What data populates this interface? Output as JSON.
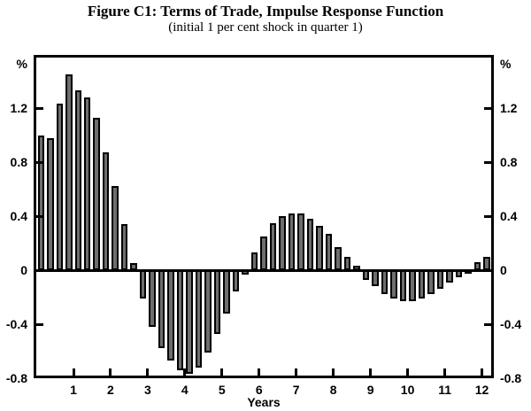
{
  "header": {
    "title": "Figure C1: Terms of Trade, Impulse Response Function",
    "subtitle": "(initial 1 per cent shock in quarter 1)"
  },
  "chart_data": {
    "type": "bar",
    "title": "Figure C1: Terms of Trade, Impulse Response Function",
    "subtitle": "(initial 1 per cent shock in quarter 1)",
    "xlabel": "Years",
    "unit_label": "%",
    "x_unit": "quarters",
    "bars_per_year": 4,
    "values": [
      1.0,
      0.98,
      1.23,
      1.45,
      1.33,
      1.28,
      1.13,
      0.87,
      0.62,
      0.34,
      0.05,
      -0.21,
      -0.42,
      -0.58,
      -0.67,
      -0.74,
      -0.77,
      -0.72,
      -0.61,
      -0.47,
      -0.32,
      -0.16,
      -0.03,
      0.13,
      0.25,
      0.35,
      0.4,
      0.42,
      0.42,
      0.38,
      0.33,
      0.27,
      0.17,
      0.1,
      0.03,
      -0.07,
      -0.12,
      -0.18,
      -0.21,
      -0.23,
      -0.23,
      -0.21,
      -0.18,
      -0.14,
      -0.09,
      -0.05,
      -0.02,
      0.06,
      0.1
    ],
    "x_tick_labels": [
      "1",
      "2",
      "3",
      "4",
      "5",
      "6",
      "7",
      "8",
      "9",
      "10",
      "11",
      "12"
    ],
    "y_tick_labels": [
      "1.2",
      "0.8",
      "0.4",
      "0",
      "-0.4",
      "-0.8"
    ],
    "y_tick_values": [
      1.2,
      0.8,
      0.4,
      0,
      -0.4,
      -0.8
    ],
    "ylim": [
      -0.8,
      1.57
    ],
    "grid": false,
    "legend": "none",
    "bar_fill_color": "#6e6e6e",
    "bar_border_color": "#000000",
    "axis_color": "#000000",
    "background_color": "#ffffff"
  }
}
